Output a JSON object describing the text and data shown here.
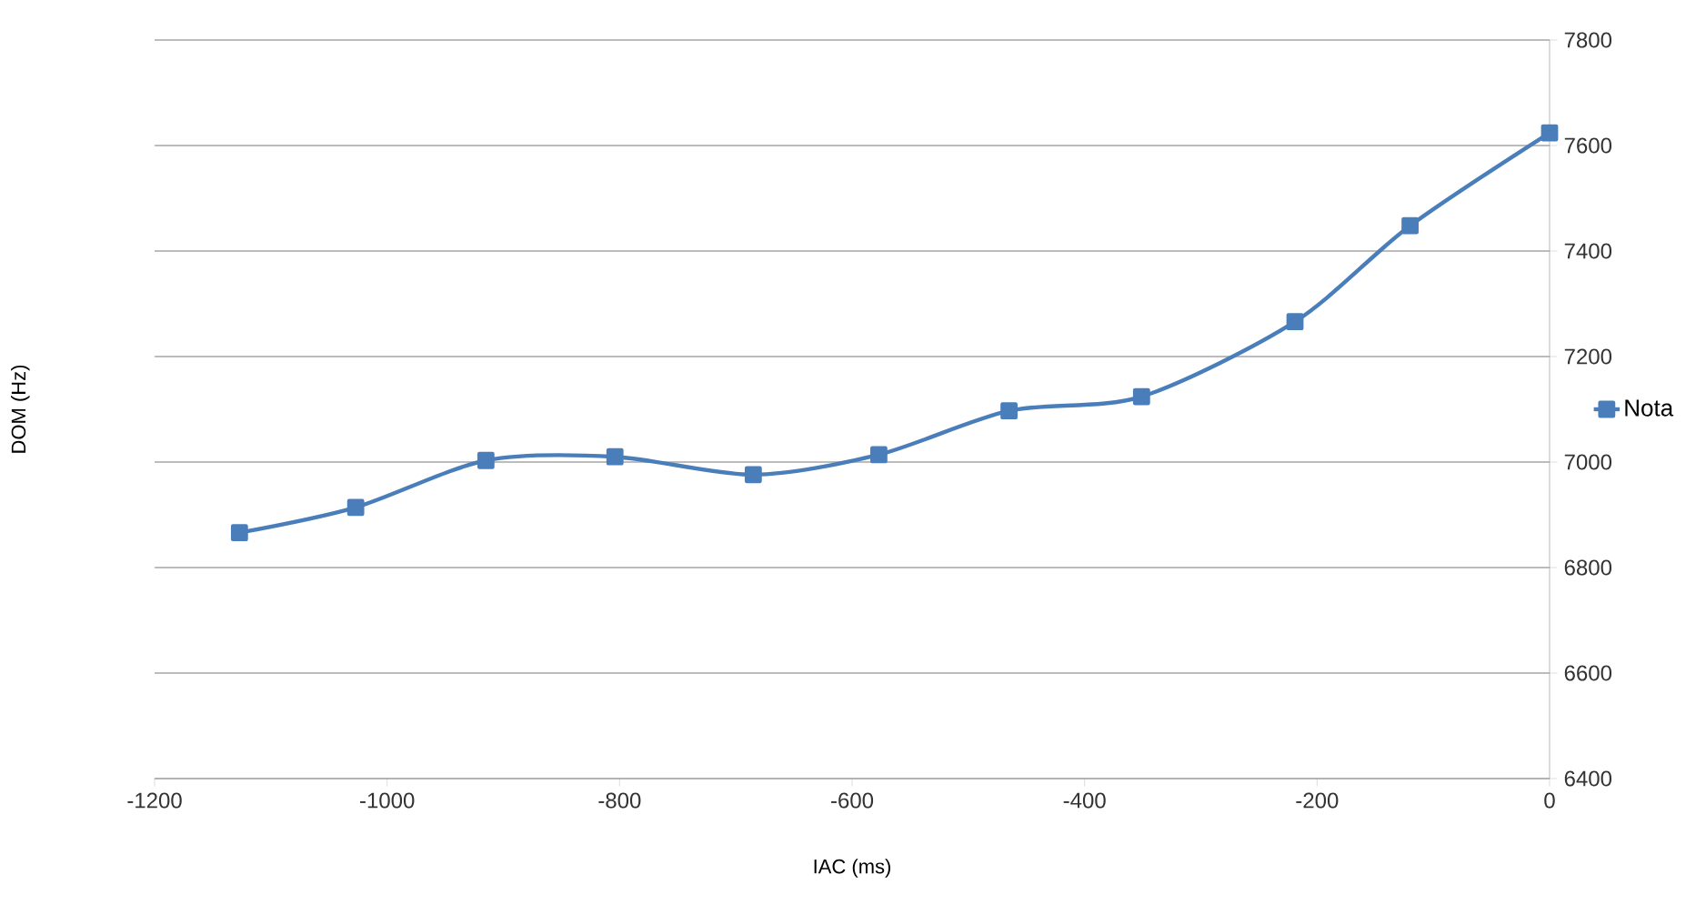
{
  "chart_data": {
    "type": "line",
    "xlabel": "IAC (ms)",
    "ylabel": "DOM (Hz)",
    "x": [
      -1127,
      -1027,
      -915,
      -804,
      -685,
      -577,
      -465,
      -351,
      -219,
      -120,
      0
    ],
    "series": [
      {
        "name": "Nota",
        "color": "#4a7ebb",
        "values": [
          6866,
          6914,
          7003,
          7010,
          6976,
          7014,
          7097,
          7124,
          7266,
          7448,
          7624
        ]
      }
    ],
    "xlim": [
      -1200,
      0
    ],
    "xticks": [
      -1200,
      -1000,
      -800,
      -600,
      -400,
      -200,
      0
    ],
    "ylim": [
      6400,
      7800
    ],
    "yticks": [
      6400,
      6600,
      6800,
      7000,
      7200,
      7400,
      7600,
      7800
    ],
    "grid": "y",
    "legend": "right",
    "marker": "square",
    "line_style": "solid"
  }
}
